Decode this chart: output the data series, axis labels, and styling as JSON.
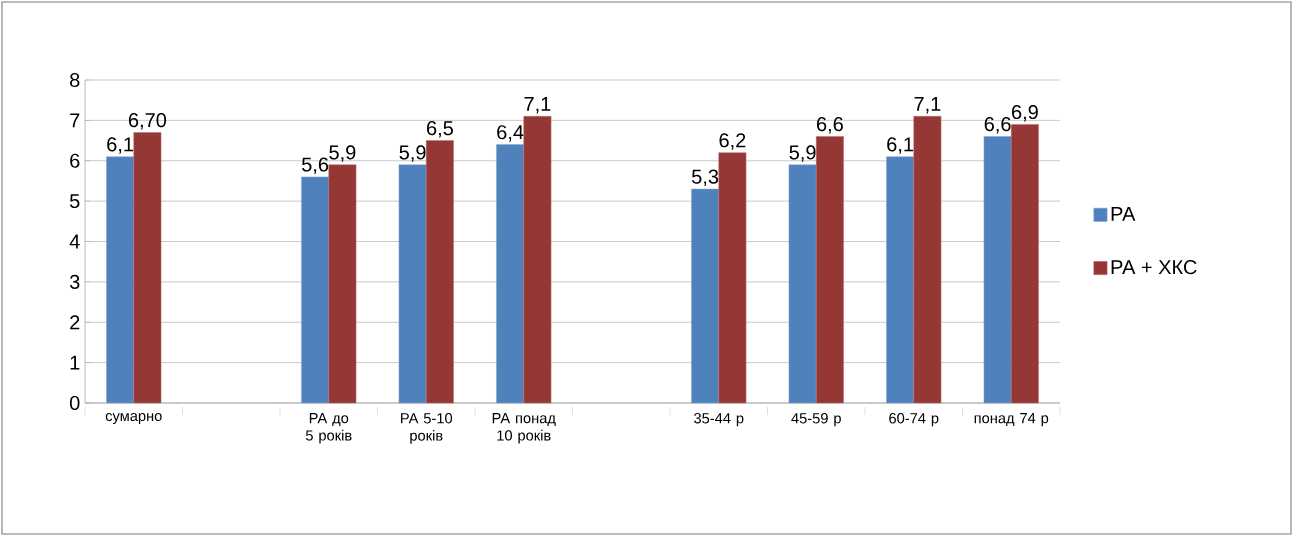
{
  "chart_data": {
    "type": "bar",
    "categories": [
      "сумарно",
      null,
      "РА до 5 років",
      "РА 5-10 років",
      "РА понад 10 років",
      null,
      "35-44 р",
      "45-59 р",
      "60-74 р",
      "понад 74 р"
    ],
    "series": [
      {
        "name": "РА",
        "color": "#4f81bd",
        "values": [
          6.1,
          null,
          5.6,
          5.9,
          6.4,
          null,
          5.3,
          5.9,
          6.1,
          6.6
        ],
        "value_labels": [
          "6,1",
          null,
          "5,6",
          "5,9",
          "6,4",
          null,
          "5,3",
          "5,9",
          "6,1",
          "6,6"
        ]
      },
      {
        "name": "РА + ХКС",
        "color": "#953735",
        "values": [
          6.7,
          null,
          5.9,
          6.5,
          7.1,
          null,
          6.2,
          6.6,
          7.1,
          6.9
        ],
        "value_labels": [
          "6,70",
          null,
          "5,9",
          "6,5",
          "7,1",
          null,
          "6,2",
          "6,6",
          "7,1",
          "6,9"
        ]
      }
    ],
    "ylim": [
      0,
      8
    ],
    "yticks": [
      0,
      1,
      2,
      3,
      4,
      5,
      6,
      7,
      8
    ],
    "grid": "y",
    "legend": "right"
  }
}
